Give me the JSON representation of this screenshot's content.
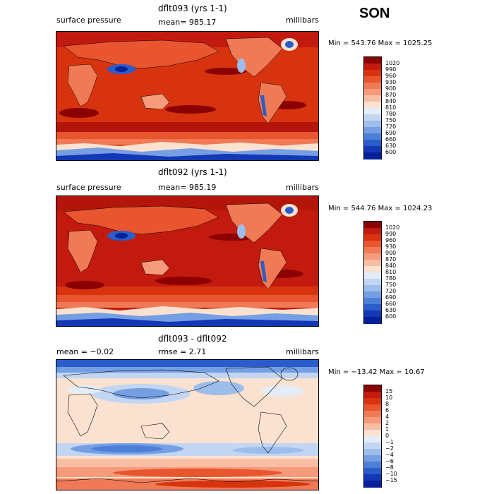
{
  "season": "SON",
  "panels": [
    {
      "title": "dflt093 (yrs 1-1)",
      "left_label": "surface pressure",
      "stat": "mean= 985.17",
      "units": "millibars",
      "minmax": "Min = 543.76 Max = 1025.25",
      "colorbar": {
        "labels": [
          "1020",
          "990",
          "960",
          "930",
          "900",
          "870",
          "840",
          "810",
          "780",
          "750",
          "720",
          "690",
          "660",
          "630",
          "600"
        ],
        "colors": [
          "#8b0000",
          "#c21a0e",
          "#d8330f",
          "#e8552e",
          "#f07a55",
          "#f59b7b",
          "#f8bea3",
          "#fbe2d0",
          "#e3edf9",
          "#c2d6f2",
          "#9dbdeb",
          "#759fe2",
          "#4c7fd8",
          "#2a5ccb",
          "#1238b6",
          "#06209a"
        ]
      }
    },
    {
      "title": "dflt092 (yrs 1-1)",
      "left_label": "surface pressure",
      "stat": "mean= 985.19",
      "units": "millibars",
      "minmax": "Min = 544.76 Max = 1024.23",
      "colorbar": {
        "labels": [
          "1020",
          "990",
          "960",
          "930",
          "900",
          "870",
          "840",
          "810",
          "780",
          "750",
          "720",
          "690",
          "660",
          "630",
          "600"
        ],
        "colors": [
          "#8b0000",
          "#c21a0e",
          "#d8330f",
          "#e8552e",
          "#f07a55",
          "#f59b7b",
          "#f8bea3",
          "#fbe2d0",
          "#e3edf9",
          "#c2d6f2",
          "#9dbdeb",
          "#759fe2",
          "#4c7fd8",
          "#2a5ccb",
          "#1238b6",
          "#06209a"
        ]
      }
    },
    {
      "title": "dflt093 - dflt092",
      "left_label": "mean =  −0.02",
      "stat": "rmse =   2.71",
      "units": "millibars",
      "minmax": "Min = −13.42 Max =  10.67",
      "colorbar": {
        "labels": [
          "15",
          "10",
          "8",
          "6",
          "4",
          "2",
          "1",
          "0",
          "−1",
          "−2",
          "−4",
          "−6",
          "−8",
          "−10",
          "−15"
        ],
        "colors": [
          "#8b0000",
          "#c21a0e",
          "#d8330f",
          "#e8552e",
          "#f07a55",
          "#f59b7b",
          "#f8bea3",
          "#fbe2d0",
          "#e3edf9",
          "#c2d6f2",
          "#9dbdeb",
          "#759fe2",
          "#4c7fd8",
          "#2a5ccb",
          "#1238b6",
          "#06209a"
        ]
      }
    }
  ]
}
